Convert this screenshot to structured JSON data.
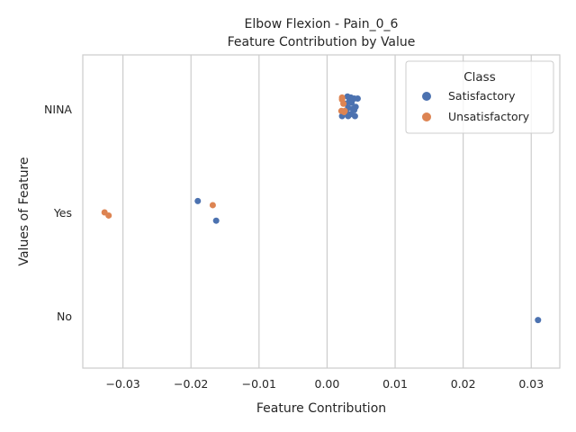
{
  "chart_data": {
    "type": "scatter",
    "title": "Elbow Flexion - Pain_0_6",
    "subtitle": "Feature Contribution by Value",
    "xlabel": "Feature Contribution",
    "ylabel": "Values of Feature",
    "xlim": [
      -0.0359,
      0.0342
    ],
    "x_ticks": [
      -0.03,
      -0.02,
      -0.01,
      0.0,
      0.01,
      0.02,
      0.03
    ],
    "x_tick_labels": [
      "−0.03",
      "−0.02",
      "−0.01",
      "0.00",
      "0.01",
      "0.02",
      "0.03"
    ],
    "categories": [
      "NINA",
      "Yes",
      "No"
    ],
    "grid": "vertical",
    "legend": {
      "title": "Class",
      "placement": "top-right"
    },
    "series": [
      {
        "name": "Satisfactory",
        "color": "#4c72b0",
        "points": [
          {
            "category": "NINA",
            "x": 0.004,
            "offset": 0.1
          },
          {
            "category": "NINA",
            "x": 0.0045,
            "offset": 0.1
          },
          {
            "category": "NINA",
            "x": 0.0035,
            "offset": 0.11
          },
          {
            "category": "NINA",
            "x": 0.003,
            "offset": 0.12
          },
          {
            "category": "NINA",
            "x": 0.0033,
            "offset": 0.08
          },
          {
            "category": "NINA",
            "x": 0.0036,
            "offset": 0.06
          },
          {
            "category": "NINA",
            "x": 0.0028,
            "offset": 0.05
          },
          {
            "category": "NINA",
            "x": 0.0042,
            "offset": 0.02
          },
          {
            "category": "NINA",
            "x": 0.0038,
            "offset": 0.0
          },
          {
            "category": "NINA",
            "x": 0.0031,
            "offset": 0.01
          },
          {
            "category": "NINA",
            "x": 0.004,
            "offset": -0.01
          },
          {
            "category": "NINA",
            "x": 0.0028,
            "offset": -0.03
          },
          {
            "category": "NINA",
            "x": 0.0035,
            "offset": -0.05
          },
          {
            "category": "NINA",
            "x": 0.0022,
            "offset": -0.07
          },
          {
            "category": "NINA",
            "x": 0.0031,
            "offset": -0.07
          },
          {
            "category": "NINA",
            "x": 0.0041,
            "offset": -0.07
          },
          {
            "category": "Yes",
            "x": -0.019,
            "offset": 0.11
          },
          {
            "category": "Yes",
            "x": -0.0163,
            "offset": -0.08
          },
          {
            "category": "No",
            "x": 0.031,
            "offset": -0.04
          }
        ]
      },
      {
        "name": "Unsatisfactory",
        "color": "#dd8452",
        "points": [
          {
            "category": "NINA",
            "x": 0.0022,
            "offset": 0.11
          },
          {
            "category": "NINA",
            "x": 0.0022,
            "offset": 0.09
          },
          {
            "category": "NINA",
            "x": 0.0024,
            "offset": 0.05
          },
          {
            "category": "NINA",
            "x": 0.0026,
            "offset": -0.02
          },
          {
            "category": "NINA",
            "x": 0.0021,
            "offset": -0.02
          },
          {
            "category": "NINA",
            "x": 0.0025,
            "offset": -0.03
          },
          {
            "category": "Yes",
            "x": -0.0168,
            "offset": 0.07
          },
          {
            "category": "Yes",
            "x": -0.0327,
            "offset": 0.0
          },
          {
            "category": "Yes",
            "x": -0.0321,
            "offset": -0.03
          }
        ]
      }
    ]
  }
}
